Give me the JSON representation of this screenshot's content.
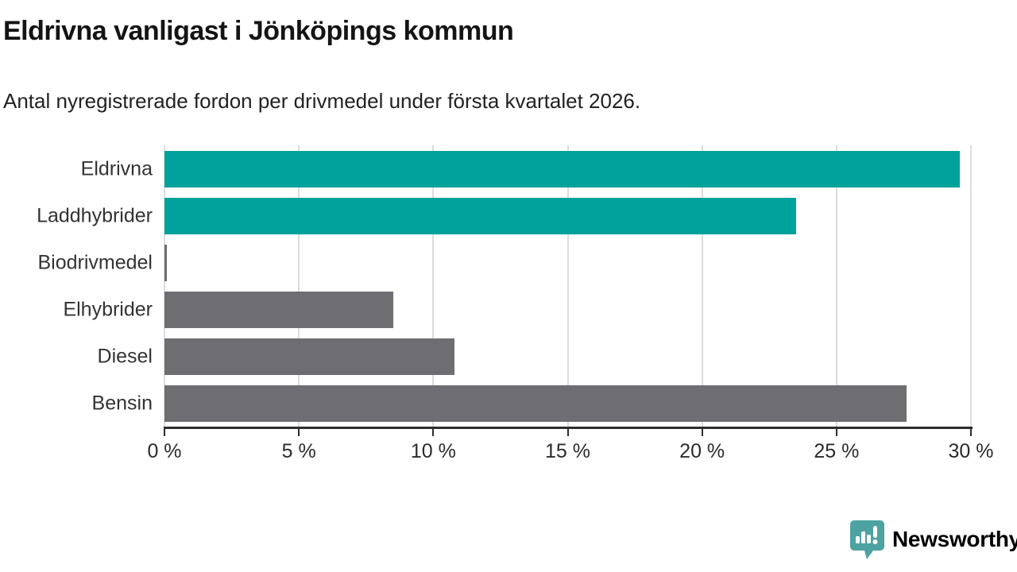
{
  "header": {
    "title": "Eldrivna vanligast i Jönköpings kommun",
    "subtitle": "Antal nyregistrerade fordon per drivmedel under första kvartalet 2026."
  },
  "chart_data": {
    "type": "bar",
    "orientation": "horizontal",
    "title": "Eldrivna vanligast i Jönköpings kommun",
    "subtitle": "Antal nyregistrerade fordon per drivmedel under första kvartalet 2026.",
    "categories": [
      "Eldrivna",
      "Laddhybrider",
      "Biodrivmedel",
      "Elhybrider",
      "Diesel",
      "Bensin"
    ],
    "values": [
      29.6,
      23.5,
      0.1,
      8.5,
      10.8,
      27.6
    ],
    "unit": "%",
    "xlabel": "",
    "ylabel": "",
    "xlim": [
      0,
      30
    ],
    "grid": true,
    "legend_position": "none",
    "bar_colors": [
      "#00a29b",
      "#00a29b",
      "#6d6d72",
      "#6d6d72",
      "#6d6d72",
      "#6d6d72"
    ],
    "x_ticks": [
      {
        "value": 0,
        "label": "0 %"
      },
      {
        "value": 5,
        "label": "5 %"
      },
      {
        "value": 10,
        "label": "10 %"
      },
      {
        "value": 15,
        "label": "15 %"
      },
      {
        "value": 20,
        "label": "20 %"
      },
      {
        "value": 25,
        "label": "25 %"
      },
      {
        "value": 30,
        "label": "30 %"
      }
    ]
  },
  "footer": {
    "brand": "Newsworthy"
  },
  "colors": {
    "accent_teal": "#00a29b",
    "bar_gray": "#6d6d72",
    "gridline": "#dcdcdc",
    "axis": "#2d2d2d",
    "title_text": "#141414",
    "body_text": "#333333",
    "logo_teal": "#4da2a2",
    "background": "#ffffff"
  }
}
